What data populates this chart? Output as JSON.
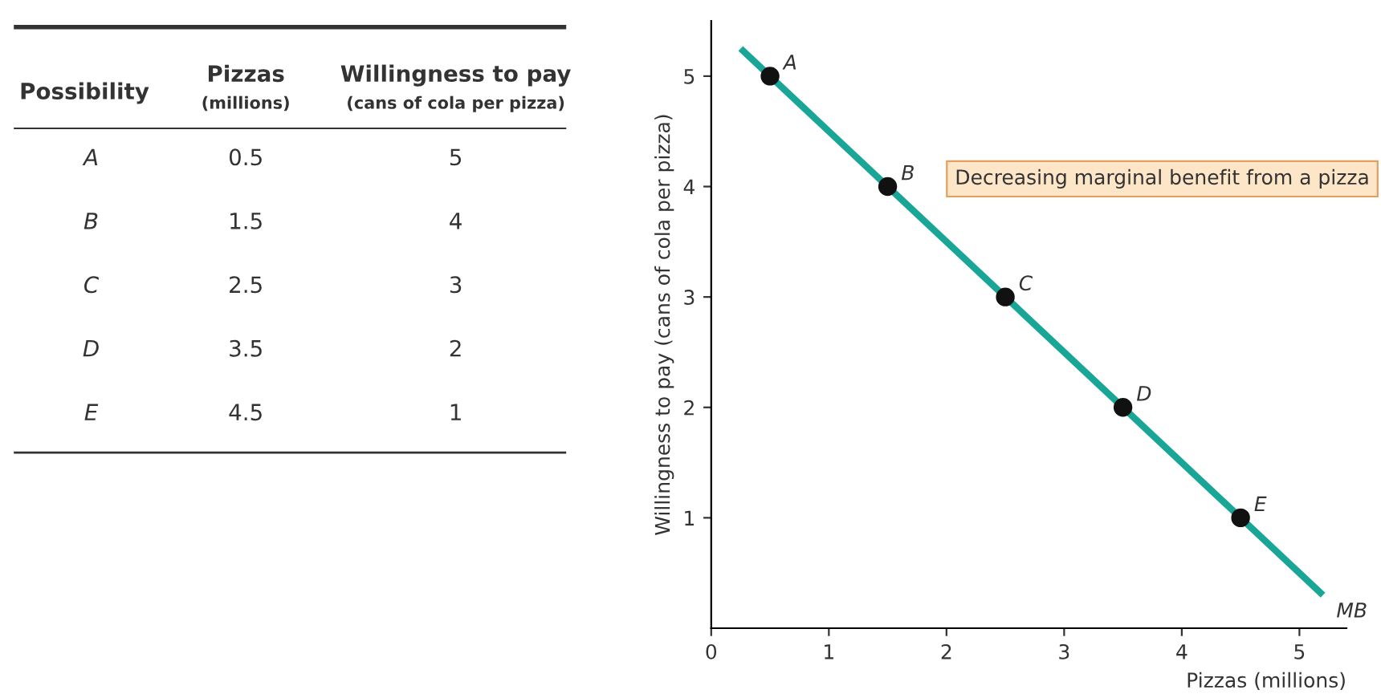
{
  "chart_data": [
    {
      "type": "other",
      "xlabel": "Possibility",
      "categories": [
        "A",
        "B",
        "C",
        "D",
        "E"
      ],
      "data_labels": true,
      "series": [
        {
          "name": "Pizzas (millions)",
          "values": [
            0.5,
            1.5,
            2.5,
            3.5,
            4.5
          ]
        },
        {
          "name": "Willingness to pay (cans of cola per pizza)",
          "values": [
            5,
            4,
            3,
            2,
            1
          ]
        }
      ]
    },
    {
      "type": "scatter",
      "xlabel": "Pizzas (millions)",
      "ylabel": "Willingness to pay (cans of cola per pizza)",
      "xlim": [
        0,
        5.4
      ],
      "ylim": [
        0,
        5.5
      ],
      "xticks": [
        0,
        1,
        2,
        3,
        4,
        5
      ],
      "yticks": [
        1,
        2,
        3,
        4,
        5
      ],
      "series": [
        {
          "name": "MB",
          "type": "line",
          "color": "#1aa697",
          "x": [
            0.25,
            5.2
          ],
          "values": [
            5.25,
            0.3
          ]
        },
        {
          "type": "scatter",
          "color": "#111111",
          "marker": "circle",
          "x": [
            0.5,
            1.5,
            2.5,
            3.5,
            4.5
          ],
          "values": [
            5,
            4,
            3,
            2,
            1
          ]
        }
      ],
      "annotations": [
        {
          "text": "A",
          "x": 0.5,
          "y": 5
        },
        {
          "text": "B",
          "x": 1.5,
          "y": 4
        },
        {
          "text": "C",
          "x": 2.5,
          "y": 3
        },
        {
          "text": "D",
          "x": 3.5,
          "y": 2
        },
        {
          "text": "E",
          "x": 4.5,
          "y": 1
        },
        "Decreasing marginal benefit from a pizza"
      ]
    }
  ]
}
